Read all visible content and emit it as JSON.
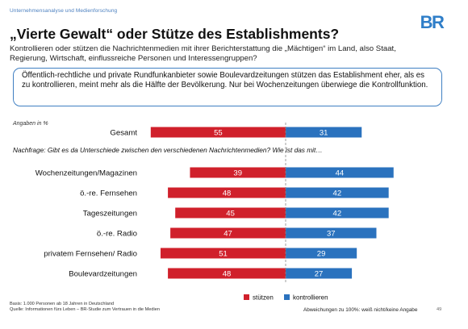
{
  "header": {
    "kicker": "Unternehmensanalyse und Medienforschung",
    "title": "„Vierte Gewalt“ oder Stütze des Establishments?",
    "subtitle": "Kontrollieren oder stützen die Nachrichtenmedien mit ihrer Berichterstattung die „Mächtigen“ im Land, also Staat, Regierung, Wirtschaft, einflussreiche Personen und Interessengruppen?",
    "summary": "Öffentlich-rechtliche und private Rundfunkanbieter sowie Boulevardzeitungen stützen das Establishment eher, als es zu kontrollieren, meint mehr als die Hälfte der Bevölkerung. Nur bei Wochenzeitungen überwiege die Kontrollfunktion.",
    "logo_text": "BR"
  },
  "chart_data": {
    "type": "bar",
    "orientation": "horizontal-diverging",
    "unit_label": "Angaben in %",
    "followup_question": "Nachfrage: Gibt es da Unterschiede zwischen den verschiedenen Nachrichtenmedien? Wie ist das mit…",
    "categories": [
      "Gesamt",
      "Wochenzeitungen/Magazinen",
      "ö.-re. Fernsehen",
      "Tageszeitungen",
      "ö.-re. Radio",
      "privatem Fernsehen/ Radio",
      "Boulevardzeitungen"
    ],
    "series": [
      {
        "name": "stützen",
        "color": "#d0202b",
        "values": [
          55,
          39,
          48,
          45,
          47,
          51,
          48
        ]
      },
      {
        "name": "kontrollieren",
        "color": "#2a72be",
        "values": [
          31,
          44,
          42,
          42,
          37,
          29,
          27
        ]
      }
    ],
    "legend_position": "bottom-right",
    "grid": false
  },
  "footer": {
    "basis": "Basis: 1.000 Personen ab 18 Jahren in Deutschland",
    "source": "Quelle: Informationen fürs Leben – BR-Studie zum Vertrauen in die Medien",
    "footnote": "Abweichungen zu 100%: weiß nicht/keine Angabe",
    "page_number": "49"
  },
  "colors": {
    "accent": "#3f7fc2",
    "stuetzen": "#d0202b",
    "kontrollieren": "#2a72be"
  }
}
